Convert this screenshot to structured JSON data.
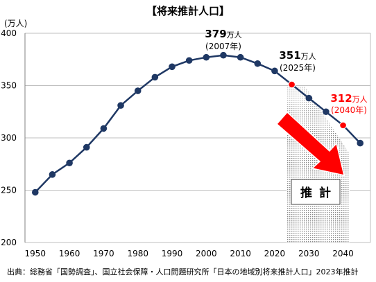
{
  "chart_data": {
    "type": "line",
    "title": "【将来推計人口】",
    "yunit": "(万人)",
    "ylim": [
      200,
      400
    ],
    "yticks": [
      200,
      250,
      300,
      350,
      400
    ],
    "xlim": [
      1947,
      2048
    ],
    "xticks": [
      1950,
      1960,
      1970,
      1980,
      1990,
      2000,
      2010,
      2020,
      2030,
      2040
    ],
    "grid": "horizontal",
    "series": [
      {
        "x": [
          1950,
          1955,
          1960,
          1965,
          1970,
          1975,
          1980,
          1985,
          1990,
          1995,
          2000,
          2005,
          2010,
          2015,
          2020,
          2025,
          2030,
          2035,
          2040,
          2045
        ],
        "values": [
          248,
          265,
          276,
          291,
          309,
          331,
          345,
          358,
          368,
          374,
          377,
          379,
          377,
          371,
          364,
          351,
          338,
          325,
          312,
          295
        ]
      }
    ],
    "highlighted_points": [
      2025,
      2040
    ],
    "annotations": [
      {
        "value": "379",
        "unit": "万人",
        "year": "(2007年)",
        "color": "#000000"
      },
      {
        "value": "351",
        "unit": "万人",
        "year": "(2025年)",
        "color": "#000000"
      },
      {
        "value": "312",
        "unit": "万人",
        "year": "(2040年)",
        "color": "#ff0000"
      }
    ],
    "estimate_label": "推計",
    "colors": {
      "line": "#1f3864",
      "highlight": "#ff0000",
      "arrow": "#ff0000",
      "grid": "#bfbfbf"
    }
  },
  "source": "出典：総務省「国勢調査」、国立社会保障・人口問題研究所「日本の地域別将来推計人口」2023年推計"
}
